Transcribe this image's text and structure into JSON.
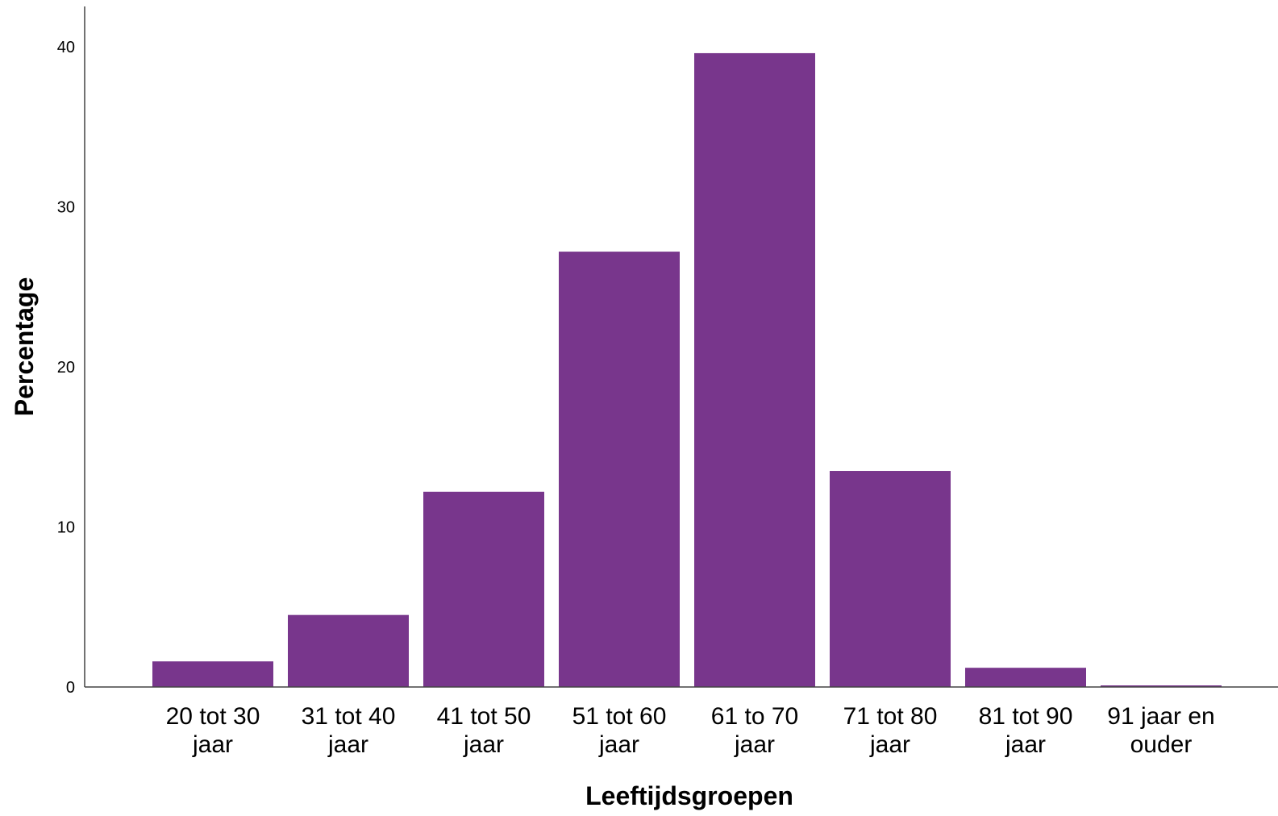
{
  "chart_data": {
    "type": "bar",
    "title": "",
    "xlabel": "Leeftijdsgroepen",
    "ylabel": "Percentage",
    "categories": [
      [
        "20 tot 30",
        "jaar"
      ],
      [
        "31 tot 40",
        "jaar"
      ],
      [
        "41 tot 50",
        "jaar"
      ],
      [
        "51 tot 60",
        "jaar"
      ],
      [
        "61 to 70",
        "jaar"
      ],
      [
        "71 tot 80",
        "jaar"
      ],
      [
        "81 tot 90",
        "jaar"
      ],
      [
        "91 jaar en",
        "ouder"
      ]
    ],
    "values": [
      1.6,
      4.5,
      12.2,
      27.2,
      39.6,
      13.5,
      1.2,
      0.1
    ],
    "ylim": [
      0,
      42
    ],
    "yticks": [
      0,
      10,
      20,
      30,
      40
    ],
    "grid": false,
    "legend": "none",
    "colors": {
      "bar": "#78368c",
      "axis": "#444444"
    }
  }
}
